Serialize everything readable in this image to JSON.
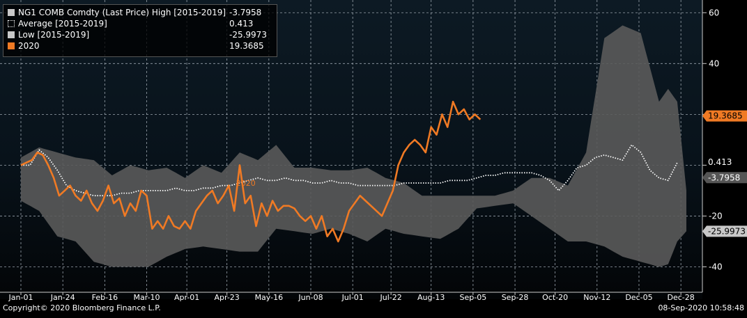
{
  "chart_data": {
    "type": "area",
    "ylim": [
      -50,
      65
    ],
    "yticks": [
      60,
      40,
      20,
      0,
      -20,
      -40
    ],
    "ytick_labels": [
      "60",
      "40",
      "",
      "",
      "-20",
      "-40"
    ],
    "x_labels": [
      "Jan-01",
      "Jan-24",
      "Feb-16",
      "Mar-10",
      "Apr-01",
      "Apr-23",
      "May-16",
      "Jun-08",
      "Jul-01",
      "Jul-22",
      "Aug-13",
      "Sep-05",
      "Sep-28",
      "Oct-20",
      "Nov-12",
      "Dec-05",
      "Dec-28"
    ],
    "x_label_days": [
      0,
      23,
      46,
      69,
      91,
      113,
      136,
      159,
      182,
      203,
      225,
      248,
      271,
      293,
      316,
      339,
      362
    ],
    "x_range": [
      0,
      365
    ],
    "annotation": "2020",
    "series": [
      {
        "name": "NG1 COMB Comdty (Last Price) High [2015-2019]",
        "legend_value": "-3.7958",
        "axis_label": "-3.7958",
        "color": "#5a5a5a",
        "x": [
          0,
          10,
          20,
          30,
          40,
          50,
          60,
          70,
          80,
          90,
          100,
          110,
          120,
          130,
          140,
          150,
          160,
          170,
          180,
          190,
          200,
          210,
          220,
          230,
          240,
          250,
          260,
          270,
          280,
          290,
          300,
          310,
          320,
          330,
          340,
          350,
          355,
          360,
          365
        ],
        "values": [
          3,
          7,
          5,
          3,
          2,
          -4,
          0,
          -2,
          -1,
          -5,
          0,
          -3,
          5,
          2,
          8,
          -1,
          -1,
          -2,
          -2,
          -1,
          -5,
          -7,
          -12,
          -12,
          -12,
          -12,
          -12,
          -10,
          -5,
          -5,
          -8,
          5,
          50,
          55,
          52,
          25,
          30,
          25,
          -10
        ]
      },
      {
        "name": "Average [2015-2019]",
        "legend_value": "0.413",
        "axis_label": "0.413",
        "color": "#ffffff",
        "x": [
          0,
          5,
          10,
          15,
          20,
          25,
          30,
          35,
          40,
          45,
          50,
          55,
          60,
          65,
          70,
          75,
          80,
          85,
          90,
          95,
          100,
          105,
          110,
          115,
          120,
          125,
          130,
          135,
          140,
          145,
          150,
          155,
          160,
          165,
          170,
          175,
          180,
          185,
          190,
          195,
          200,
          205,
          210,
          215,
          220,
          225,
          230,
          235,
          240,
          245,
          250,
          255,
          260,
          265,
          270,
          275,
          280,
          285,
          290,
          295,
          300,
          305,
          310,
          315,
          320,
          325,
          330,
          335,
          340,
          345,
          350,
          355,
          360
        ],
        "values": [
          0,
          0,
          6,
          3,
          -2,
          -8,
          -10,
          -11,
          -12,
          -12,
          -12,
          -11,
          -11,
          -10,
          -10,
          -10,
          -10,
          -9,
          -10,
          -10,
          -9,
          -9,
          -8,
          -8,
          -7,
          -6,
          -5,
          -6,
          -6,
          -5,
          -6,
          -6,
          -7,
          -7,
          -6,
          -7,
          -7,
          -8,
          -8,
          -8,
          -8,
          -8,
          -7,
          -7,
          -7,
          -7,
          -7,
          -6,
          -6,
          -6,
          -5,
          -4,
          -4,
          -3,
          -3,
          -3,
          -3,
          -4,
          -6,
          -10,
          -6,
          -1,
          0,
          3,
          4,
          3,
          2,
          8,
          5,
          -2,
          -5,
          -6,
          1
        ]
      },
      {
        "name": "Low [2015-2019]",
        "legend_value": "-25.9973",
        "axis_label": "-25.9973",
        "color": "#c8c8c8",
        "x": [
          0,
          10,
          20,
          30,
          40,
          50,
          60,
          70,
          80,
          90,
          100,
          110,
          120,
          130,
          140,
          150,
          160,
          170,
          180,
          190,
          200,
          210,
          220,
          230,
          240,
          250,
          260,
          270,
          280,
          290,
          300,
          310,
          320,
          330,
          340,
          350,
          355,
          360,
          365
        ],
        "values": [
          -14,
          -18,
          -28,
          -30,
          -38,
          -40,
          -40,
          -40,
          -36,
          -33,
          -32,
          -33,
          -34,
          -34,
          -25,
          -26,
          -27,
          -25,
          -27,
          -30,
          -25,
          -27,
          -28,
          -29,
          -25,
          -17,
          -16,
          -15,
          -20,
          -25,
          -30,
          -30,
          -32,
          -36,
          -38,
          -40,
          -39,
          -30,
          -26
        ]
      },
      {
        "name": "2020",
        "legend_value": "19.3685",
        "axis_label": "19.3685",
        "color": "#f07a24",
        "x": [
          0,
          3,
          6,
          9,
          12,
          15,
          18,
          21,
          24,
          27,
          30,
          33,
          36,
          39,
          42,
          45,
          48,
          51,
          54,
          57,
          60,
          63,
          66,
          69,
          72,
          75,
          78,
          81,
          84,
          87,
          90,
          93,
          96,
          99,
          102,
          105,
          108,
          111,
          114,
          117,
          120,
          123,
          126,
          129,
          132,
          135,
          138,
          141,
          144,
          147,
          150,
          153,
          156,
          159,
          162,
          165,
          168,
          171,
          174,
          177,
          180,
          183,
          186,
          189,
          192,
          195,
          198,
          201,
          204,
          207,
          210,
          213,
          216,
          219,
          222,
          225,
          228,
          231,
          234,
          237,
          240,
          243,
          246,
          249,
          252
        ],
        "values": [
          0,
          1,
          2,
          5,
          4,
          0,
          -5,
          -12,
          -10,
          -8,
          -12,
          -14,
          -10,
          -15,
          -18,
          -14,
          -8,
          -15,
          -13,
          -20,
          -15,
          -18,
          -10,
          -12,
          -25,
          -22,
          -25,
          -20,
          -24,
          -25,
          -22,
          -25,
          -18,
          -15,
          -12,
          -10,
          -15,
          -12,
          -8,
          -18,
          0,
          -15,
          -12,
          -24,
          -15,
          -20,
          -14,
          -18,
          -16,
          -16,
          -17,
          -20,
          -22,
          -20,
          -25,
          -20,
          -28,
          -25,
          -30,
          -25,
          -18,
          -15,
          -12,
          -14,
          -16,
          -18,
          -20,
          -15,
          -10,
          0,
          5,
          8,
          10,
          8,
          5,
          15,
          12,
          20,
          15,
          25,
          20,
          22,
          18,
          20,
          18
        ]
      }
    ]
  },
  "footer": {
    "copyright": "Copyright© 2020 Bloomberg Finance L.P.",
    "timestamp": "08-Sep-2020 10:58:48"
  }
}
